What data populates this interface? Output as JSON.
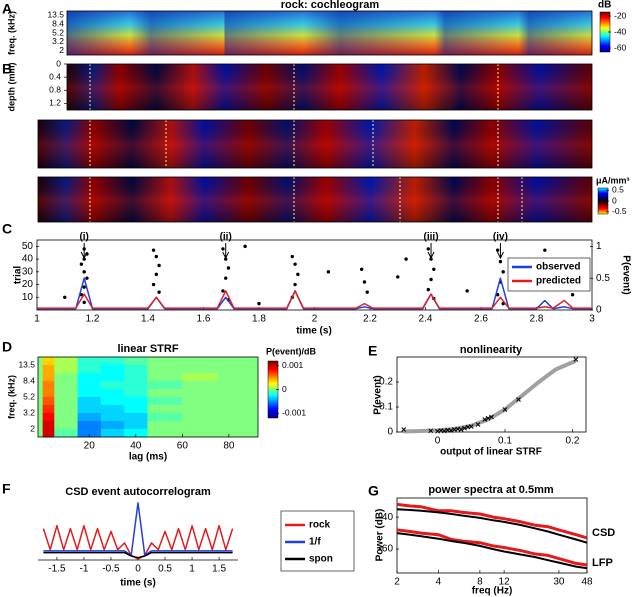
{
  "panel_labels": [
    "A",
    "B",
    "C",
    "D",
    "E",
    "F",
    "G"
  ],
  "chart_data": [
    {
      "type": "heatmap",
      "title": "rock: cochleogram",
      "ylabel": "freq. (kHz)",
      "ycategories": [
        "13.5",
        "8.4",
        "5.2",
        "3.2",
        "2"
      ],
      "colorbar": {
        "label": "dB",
        "clim": [
          -65,
          -15
        ],
        "ticks": [
          -20,
          -40,
          -60
        ]
      }
    },
    {
      "type": "heatmap",
      "ylabel": "depth (mm)",
      "ylim": [
        0,
        1.4
      ],
      "yticks": [
        0,
        0.4,
        0.8,
        1.2
      ],
      "colorbar": {
        "label": "μA/mm³",
        "clim": [
          -0.6,
          0.6
        ],
        "ticks": [
          0.5,
          0,
          -0.5
        ]
      }
    },
    {
      "type": "line",
      "xlabel": "time (s)",
      "ylabel": "trial",
      "y2label": "P(event)",
      "xlim": [
        1,
        3
      ],
      "xticks": [
        1,
        1.2,
        1.4,
        1.6,
        1.8,
        2,
        2.2,
        2.4,
        2.6,
        2.8,
        3
      ],
      "ylim": [
        0,
        55
      ],
      "yticks": [
        10,
        20,
        30,
        40,
        50
      ],
      "y2lim": [
        0,
        1.1
      ],
      "y2ticks": [
        0,
        0.5,
        1
      ],
      "legend": "upper right",
      "annotations": [
        {
          "text": "(i)",
          "x": 1.17
        },
        {
          "text": "(ii)",
          "x": 1.68
        },
        {
          "text": "(iii)",
          "x": 2.42
        },
        {
          "text": "(iv)",
          "x": 2.67
        }
      ],
      "raster": {
        "color": "#000000",
        "x": [
          1.17,
          1.18,
          1.17,
          1.16,
          1.17,
          1.18,
          1.17,
          1.16,
          1.17,
          1.42,
          1.43,
          1.44,
          1.43,
          1.42,
          1.44,
          1.67,
          1.68,
          1.69,
          1.68,
          1.67,
          1.69,
          1.92,
          1.93,
          1.94,
          1.93,
          1.92,
          2.17,
          2.18,
          2.19,
          2.41,
          2.42,
          2.43,
          2.42,
          2.41,
          2.43,
          2.66,
          2.67,
          2.68,
          2.67,
          2.66,
          2.68,
          1.1,
          1.75,
          1.8,
          2.05,
          2.3,
          2.33,
          2.55,
          2.83,
          2.93
        ],
        "y": [
          48,
          44,
          40,
          36,
          30,
          25,
          18,
          12,
          6,
          47,
          42,
          35,
          28,
          20,
          14,
          48,
          40,
          33,
          25,
          15,
          8,
          42,
          36,
          28,
          20,
          10,
          32,
          22,
          14,
          48,
          40,
          32,
          24,
          16,
          9,
          47,
          38,
          30,
          22,
          12,
          5,
          10,
          50,
          5,
          30,
          26,
          40,
          15,
          47,
          12
        ]
      },
      "x": [
        1,
        1.14,
        1.17,
        1.2,
        1.4,
        1.43,
        1.46,
        1.65,
        1.68,
        1.71,
        1.9,
        1.93,
        1.96,
        2.15,
        2.18,
        2.21,
        2.39,
        2.42,
        2.45,
        2.64,
        2.67,
        2.7,
        2.8,
        2.83,
        2.86,
        2.9,
        2.93,
        3
      ],
      "series": [
        {
          "name": "observed",
          "color": "#1f3fe0",
          "axis": "y2",
          "values": [
            0.02,
            0.02,
            0.5,
            0.02,
            0.02,
            0.2,
            0.02,
            0.02,
            0.2,
            0.02,
            0.02,
            0.3,
            0.02,
            0.02,
            0.05,
            0.02,
            0.02,
            0.25,
            0.02,
            0.02,
            0.5,
            0.02,
            0.02,
            0.15,
            0.02,
            0.05,
            0.02,
            0.02
          ]
        },
        {
          "name": "predicted",
          "color": "#e02020",
          "axis": "y2",
          "values": [
            0.03,
            0.03,
            0.25,
            0.03,
            0.03,
            0.2,
            0.03,
            0.03,
            0.3,
            0.03,
            0.03,
            0.3,
            0.03,
            0.03,
            0.1,
            0.03,
            0.03,
            0.25,
            0.03,
            0.03,
            0.2,
            0.03,
            0.03,
            0.05,
            0.03,
            0.15,
            0.03,
            0.03
          ]
        }
      ]
    },
    {
      "type": "heatmap",
      "title": "linear STRF",
      "xlabel": "lag (ms)",
      "ylabel": "freq. (kHz)",
      "xlim": [
        -2,
        92.5
      ],
      "xticks": [
        20,
        40,
        60,
        80
      ],
      "ycategories": [
        "13.5",
        "8.4",
        "5.2",
        "3.2",
        "2"
      ],
      "lag_edges": [
        0,
        5,
        15,
        25,
        35,
        45,
        60,
        75,
        92
      ],
      "z": [
        [
          0.0004,
          0.0001,
          -0.0002,
          -0.0002,
          -0.0001,
          0,
          0,
          0
        ],
        [
          0.0005,
          0.0001,
          -0.0002,
          -0.0003,
          -0.0002,
          0,
          0,
          0
        ],
        [
          0.0005,
          0,
          -0.0003,
          -0.0003,
          -0.0002,
          0,
          0.0001,
          0
        ],
        [
          0.0006,
          0,
          -0.0003,
          -0.0002,
          -0.0002,
          -0.0001,
          0,
          0
        ],
        [
          0.0006,
          0,
          -0.0003,
          -0.0003,
          -0.0002,
          0,
          0,
          0
        ],
        [
          0.0007,
          0,
          -0.0004,
          -0.0003,
          -0.0003,
          -0.0001,
          0,
          0
        ],
        [
          0.0008,
          0,
          -0.0004,
          -0.0004,
          -0.0003,
          0,
          0,
          0
        ],
        [
          0.0009,
          0,
          -0.0005,
          -0.0004,
          -0.0004,
          -0.0001,
          0,
          0
        ],
        [
          0.001,
          0,
          -0.0006,
          -0.0005,
          -0.0004,
          0,
          0,
          0
        ],
        [
          0.001,
          -0.0001,
          -0.0006,
          -0.0004,
          -0.0003,
          0,
          0,
          0
        ]
      ],
      "colorbar": {
        "label": "P(event)/dB",
        "clim": [
          -0.0012,
          0.0012
        ],
        "ticks": [
          0.001,
          0,
          -0.001
        ]
      }
    },
    {
      "type": "scatter",
      "title": "nonlinearity",
      "xlabel": "output of linear STRF",
      "ylabel": "P(event)",
      "xlim": [
        -0.06,
        0.22
      ],
      "xticks": [
        0,
        0.1,
        0.2
      ],
      "ylim": [
        0,
        0.3
      ],
      "yticks": [
        0,
        0.1,
        0.2
      ],
      "color": "#000000",
      "x": [
        -0.05,
        -0.01,
        0,
        0.005,
        0.01,
        0.015,
        0.02,
        0.025,
        0.03,
        0.035,
        0.04,
        0.045,
        0.05,
        0.06,
        0.07,
        0.075,
        0.08,
        0.1,
        0.12,
        0.205
      ],
      "y": [
        0.01,
        0.005,
        0.003,
        0.006,
        0.004,
        0.008,
        0.006,
        0.01,
        0.012,
        0.01,
        0.015,
        0.02,
        0.022,
        0.03,
        0.05,
        0.055,
        0.06,
        0.09,
        0.13,
        0.29
      ],
      "fit": {
        "color": "#a0a0a0",
        "x": [
          -0.05,
          0,
          0.025,
          0.05,
          0.075,
          0.1,
          0.125,
          0.15,
          0.175,
          0.205
        ],
        "y": [
          0.002,
          0.006,
          0.012,
          0.025,
          0.05,
          0.09,
          0.145,
          0.2,
          0.25,
          0.285
        ]
      }
    },
    {
      "type": "line",
      "title": "CSD event autocorrelogram",
      "xlabel": "time (s)",
      "xlim": [
        -1.85,
        1.85
      ],
      "xticks": [
        -1.5,
        -1,
        -0.5,
        0,
        0.5,
        1,
        1.5
      ],
      "ylim": [
        0,
        1.05
      ],
      "legend": "right",
      "x": [
        -1.75,
        -1.625,
        -1.5,
        -1.375,
        -1.25,
        -1.125,
        -1,
        -0.875,
        -0.75,
        -0.625,
        -0.5,
        -0.375,
        -0.25,
        -0.125,
        0,
        0.125,
        0.25,
        0.375,
        0.5,
        0.625,
        0.75,
        0.875,
        1,
        1.125,
        1.25,
        1.375,
        1.5,
        1.625,
        1.75
      ],
      "series": [
        {
          "name": "rock",
          "color": "#e41a1c",
          "values": [
            0.55,
            0.18,
            0.6,
            0.18,
            0.55,
            0.18,
            0.6,
            0.18,
            0.55,
            0.18,
            0.5,
            0.18,
            0.3,
            0.08,
            0.02,
            0.08,
            0.3,
            0.18,
            0.5,
            0.18,
            0.55,
            0.18,
            0.6,
            0.18,
            0.55,
            0.18,
            0.6,
            0.18,
            0.55
          ]
        },
        {
          "name": "1/f",
          "color": "#1f3fe0",
          "values": [
            0.16,
            0.16,
            0.16,
            0.16,
            0.16,
            0.16,
            0.16,
            0.16,
            0.16,
            0.16,
            0.16,
            0.16,
            0.16,
            0.08,
            1.0,
            0.08,
            0.16,
            0.16,
            0.16,
            0.16,
            0.16,
            0.16,
            0.16,
            0.16,
            0.16,
            0.16,
            0.16,
            0.16,
            0.16
          ]
        },
        {
          "name": "spon",
          "color": "#000000",
          "values": [
            0.13,
            0.13,
            0.13,
            0.13,
            0.13,
            0.13,
            0.13,
            0.13,
            0.13,
            0.13,
            0.13,
            0.13,
            0.13,
            0.07,
            0.04,
            0.07,
            0.13,
            0.13,
            0.13,
            0.13,
            0.13,
            0.13,
            0.13,
            0.13,
            0.13,
            0.13,
            0.13,
            0.13,
            0.13
          ]
        }
      ]
    },
    {
      "type": "line",
      "title": "power spectra at 0.5mm",
      "xlabel": "freq (Hz)",
      "ylabel": "Power (dB)",
      "xscale": "log",
      "xlim": [
        2,
        48
      ],
      "xticks": [
        2,
        4,
        8,
        12,
        30,
        48
      ],
      "ylim": [
        -75,
        -28
      ],
      "yticks": [
        -40,
        -60
      ],
      "annotations": [
        "CSD",
        "LFP"
      ],
      "x": [
        2,
        2.5,
        3,
        4,
        5,
        6,
        8,
        10,
        12,
        16,
        20,
        25,
        30,
        40,
        48
      ],
      "series": [
        {
          "color": "#e41a1c",
          "width": 3,
          "values": [
            -32,
            -33,
            -33.5,
            -36,
            -36,
            -37,
            -38,
            -40,
            -41,
            -43,
            -45,
            -46,
            -48,
            -51,
            -53
          ]
        },
        {
          "color": "#000000",
          "width": 2,
          "values": [
            -35,
            -35.5,
            -36,
            -37,
            -38,
            -39,
            -40.5,
            -42,
            -43,
            -45,
            -47,
            -49,
            -51,
            -54,
            -56
          ]
        },
        {
          "color": "#e41a1c",
          "width": 3,
          "values": [
            -48,
            -49,
            -50,
            -51,
            -54,
            -55,
            -56,
            -58,
            -59,
            -61,
            -63,
            -64,
            -66,
            -69,
            -70
          ]
        },
        {
          "color": "#000000",
          "width": 2,
          "values": [
            -50,
            -51,
            -52,
            -53.5,
            -55,
            -56,
            -58,
            -60,
            -61.5,
            -63.5,
            -65,
            -67,
            -68.5,
            -71,
            -72
          ]
        }
      ]
    }
  ]
}
